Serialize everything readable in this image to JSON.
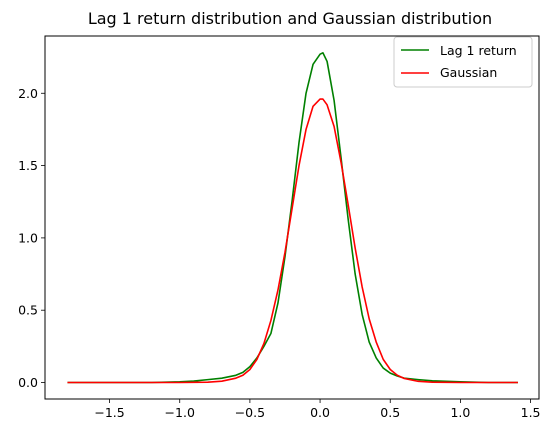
{
  "chart_data": {
    "type": "line",
    "title": "Lag 1 return distribution and Gaussian distribution",
    "xlabel": "",
    "ylabel": "",
    "xlim": [
      -1.96,
      1.56
    ],
    "ylim": [
      -0.114,
      2.396
    ],
    "x_ticks": [
      -1.5,
      -1.0,
      -0.5,
      0.0,
      0.5,
      1.0,
      1.5
    ],
    "x_tick_labels": [
      "−1.5",
      "−1.0",
      "−0.5",
      "0.0",
      "0.5",
      "1.0",
      "1.5"
    ],
    "y_ticks": [
      0.0,
      0.5,
      1.0,
      1.5,
      2.0
    ],
    "y_tick_labels": [
      "0.0",
      "0.5",
      "1.0",
      "1.5",
      "2.0"
    ],
    "grid": false,
    "legend": "top-right",
    "series": [
      {
        "name": "Lag 1 return",
        "color": "#008000",
        "x": [
          -1.8,
          -1.5,
          -1.2,
          -1.0,
          -0.9,
          -0.8,
          -0.7,
          -0.6,
          -0.55,
          -0.5,
          -0.45,
          -0.4,
          -0.35,
          -0.3,
          -0.25,
          -0.2,
          -0.15,
          -0.1,
          -0.05,
          0.0,
          0.02,
          0.05,
          0.1,
          0.15,
          0.2,
          0.25,
          0.3,
          0.35,
          0.4,
          0.45,
          0.5,
          0.55,
          0.6,
          0.7,
          0.8,
          1.0,
          1.2,
          1.41
        ],
        "y": [
          0.0,
          0.0,
          0.0,
          0.005,
          0.01,
          0.02,
          0.03,
          0.05,
          0.07,
          0.11,
          0.17,
          0.25,
          0.34,
          0.55,
          0.87,
          1.25,
          1.66,
          2.0,
          2.2,
          2.27,
          2.28,
          2.22,
          1.95,
          1.55,
          1.13,
          0.75,
          0.47,
          0.28,
          0.17,
          0.1,
          0.065,
          0.045,
          0.03,
          0.02,
          0.012,
          0.005,
          0.0,
          0.0
        ]
      },
      {
        "name": "Gaussian",
        "color": "#ff0000",
        "x": [
          -1.8,
          -1.5,
          -1.2,
          -1.0,
          -0.8,
          -0.7,
          -0.6,
          -0.55,
          -0.5,
          -0.45,
          -0.4,
          -0.35,
          -0.3,
          -0.25,
          -0.2,
          -0.15,
          -0.1,
          -0.05,
          0.0,
          0.02,
          0.05,
          0.1,
          0.15,
          0.2,
          0.25,
          0.3,
          0.35,
          0.4,
          0.45,
          0.5,
          0.55,
          0.6,
          0.7,
          0.8,
          1.0,
          1.2,
          1.41
        ],
        "y": [
          0.0,
          0.0,
          0.0,
          0.0,
          0.002,
          0.009,
          0.03,
          0.05,
          0.09,
          0.16,
          0.27,
          0.43,
          0.64,
          0.9,
          1.2,
          1.5,
          1.75,
          1.91,
          1.96,
          1.96,
          1.92,
          1.77,
          1.52,
          1.23,
          0.93,
          0.66,
          0.44,
          0.28,
          0.16,
          0.09,
          0.05,
          0.028,
          0.008,
          0.002,
          0.0,
          0.0,
          0.0
        ]
      }
    ]
  }
}
